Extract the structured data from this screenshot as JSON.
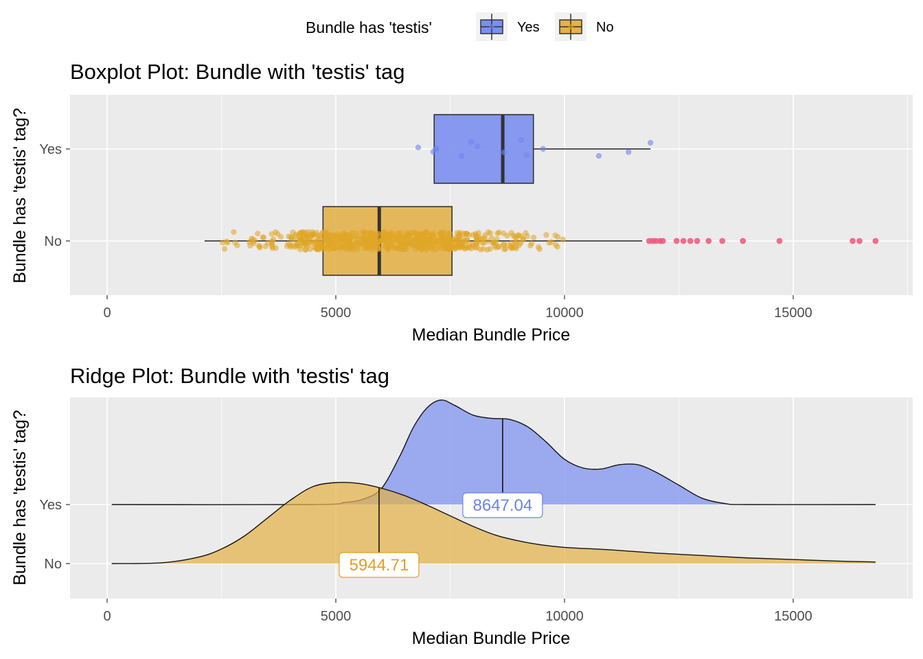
{
  "legend": {
    "title": "Bundle has 'testis'",
    "items": [
      {
        "label": "Yes",
        "fill": "#7b8ff0",
        "text_color": "#000000"
      },
      {
        "label": "No",
        "fill": "#e3b24a",
        "text_color": "#000000"
      }
    ]
  },
  "colors": {
    "yes": "#7b8ff0",
    "no": "#e3b24a",
    "yes_point": "#6f86ee",
    "no_point": "#e0a526",
    "outlier": "#f0557a",
    "panel_bg": "#ebebeb",
    "grid": "#ffffff",
    "yes_label": "#6b83ea",
    "no_label": "#e0a023"
  },
  "chart_data": [
    {
      "type": "boxplot",
      "title": "Boxplot Plot: Bundle with 'testis' tag",
      "xlabel": "Median Bundle Price",
      "ylabel": "Bundle has 'testis' tag?",
      "xlim": [
        -800,
        17600
      ],
      "x_ticks": [
        0,
        5000,
        10000,
        15000
      ],
      "categories": [
        "Yes",
        "No"
      ],
      "boxes": [
        {
          "name": "Yes",
          "min": 7150,
          "q1": 7150,
          "median": 8650,
          "q3": 9320,
          "max": 11880
        },
        {
          "name": "No",
          "min": 2130,
          "q1": 4720,
          "median": 5950,
          "q3": 7540,
          "max": 11700
        }
      ],
      "points_yes": [
        6800,
        7130,
        7180,
        7750,
        7960,
        8680,
        9050,
        9170,
        9530,
        10750,
        11400,
        11880,
        7200,
        8100
      ],
      "outliers_no": [
        11850,
        11930,
        12000,
        12090,
        12150,
        12450,
        12600,
        12750,
        12900,
        13150,
        13450,
        13900,
        14700,
        16300,
        16450,
        16800
      ]
    },
    {
      "type": "ridgeline",
      "title": "Ridge Plot: Bundle with 'testis' tag",
      "xlabel": "Median Bundle Price",
      "ylabel": "Bundle has 'testis' tag?",
      "xlim": [
        -800,
        17600
      ],
      "x_ticks": [
        0,
        5000,
        10000,
        15000
      ],
      "categories": [
        "Yes",
        "No"
      ],
      "series": [
        {
          "name": "Yes",
          "median": 8647.04,
          "median_label": "8647.04",
          "x": [
            100,
            4500,
            5200,
            5600,
            6000,
            6400,
            6700,
            7000,
            7300,
            7600,
            8000,
            8400,
            8800,
            9200,
            9600,
            10000,
            10400,
            10800,
            11200,
            11600,
            12000,
            12500,
            13000,
            13500,
            14000,
            16800
          ],
          "density": [
            0,
            0,
            0.02,
            0.05,
            0.15,
            0.45,
            0.72,
            0.9,
            0.97,
            0.92,
            0.83,
            0.8,
            0.79,
            0.72,
            0.58,
            0.42,
            0.34,
            0.33,
            0.37,
            0.37,
            0.3,
            0.18,
            0.06,
            0.01,
            0,
            0
          ]
        },
        {
          "name": "No",
          "median": 5944.71,
          "median_label": "5944.71",
          "x": [
            100,
            1200,
            2000,
            2500,
            3000,
            3500,
            4000,
            4500,
            5000,
            5500,
            6000,
            6500,
            7000,
            7500,
            8000,
            8500,
            9000,
            9500,
            10000,
            11000,
            12000,
            13000,
            14000,
            15000,
            16000,
            16800
          ],
          "density": [
            0,
            0.01,
            0.08,
            0.18,
            0.34,
            0.56,
            0.78,
            0.95,
            1.0,
            0.99,
            0.93,
            0.84,
            0.72,
            0.59,
            0.46,
            0.35,
            0.28,
            0.23,
            0.2,
            0.17,
            0.13,
            0.1,
            0.07,
            0.05,
            0.03,
            0.02
          ]
        }
      ]
    }
  ]
}
